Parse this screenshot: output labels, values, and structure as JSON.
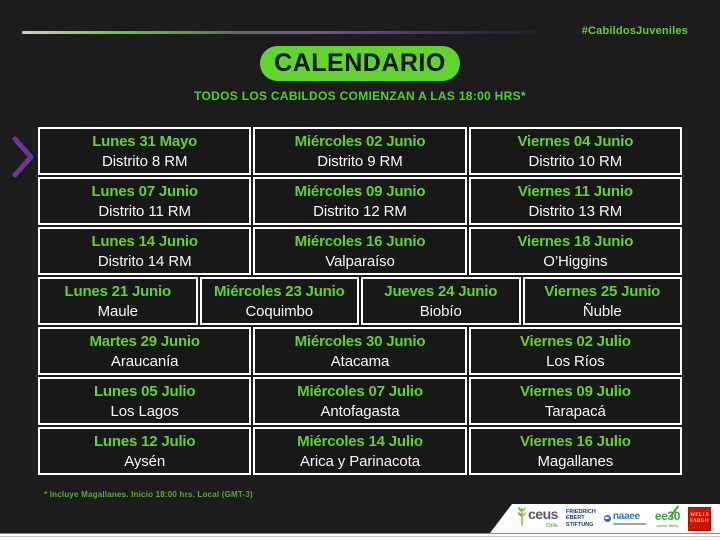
{
  "colors": {
    "background": "#1d1c1c",
    "accent_green": "#5fd32c",
    "accent_purple": "#7030a0",
    "footnote_green": "#54ad2c",
    "fes_blue": "#123d7a",
    "naaee_blue": "#2a79c0",
    "ee30_green": "#3ea23a",
    "wells_fargo_red": "#cd1309",
    "wells_fargo_yellow": "#ffd04a"
  },
  "header": {
    "hashtag": "#CabildosJuveniles",
    "title": "CALENDARIO",
    "subtitle": "TODOS LOS CABILDOS COMIENZAN A LAS 18:00 HRS*"
  },
  "calendar": {
    "rows": [
      {
        "cells": [
          {
            "date": "Lunes 31 Mayo",
            "location": "Distrito 8 RM"
          },
          {
            "date": "Miércoles 02 Junio",
            "location": "Distrito 9 RM"
          },
          {
            "date": "Viernes 04 Junio",
            "location": "Distrito 10 RM"
          }
        ]
      },
      {
        "cells": [
          {
            "date": "Lunes 07 Junio",
            "location": "Distrito 11 RM"
          },
          {
            "date": "Miércoles 09 Junio",
            "location": "Distrito 12 RM"
          },
          {
            "date": "Viernes 11 Junio",
            "location": "Distrito 13 RM"
          }
        ]
      },
      {
        "cells": [
          {
            "date": "Lunes 14 Junio",
            "location": "Distrito 14 RM"
          },
          {
            "date": "Miércoles 16 Junio",
            "location": "Valparaíso"
          },
          {
            "date": "Viernes 18 Junio",
            "location": "O’Higgins"
          }
        ]
      },
      {
        "cells": [
          {
            "date": "Lunes 21 Junio",
            "location": "Maule"
          },
          {
            "date": "Miércoles 23 Junio",
            "location": "Coquimbo"
          },
          {
            "date": "Jueves 24 Junio",
            "location": "Biobío"
          },
          {
            "date": "Viernes 25 Junio",
            "location": "Ñuble"
          }
        ]
      },
      {
        "cells": [
          {
            "date": "Martes 29 Junio",
            "location": "Araucanía"
          },
          {
            "date": "Miércoles 30 Junio",
            "location": "Atacama"
          },
          {
            "date": "Viernes 02 Julio",
            "location": "Los Ríos"
          }
        ]
      },
      {
        "cells": [
          {
            "date": "Lunes 05 Julio",
            "location": "Los Lagos"
          },
          {
            "date": "Miércoles 07 Julio",
            "location": "Antofagasta"
          },
          {
            "date": "Viernes 09 Julio",
            "location": "Tarapacá"
          }
        ]
      },
      {
        "cells": [
          {
            "date": "Lunes 12 Julio",
            "location": "Aysén"
          },
          {
            "date": "Miércoles 14 Julio",
            "location": "Arica y Parinacota"
          },
          {
            "date": "Viernes 16 Julio",
            "location": "Magallanes"
          }
        ]
      }
    ]
  },
  "footnote": "* Incluye Magallanes.  Inicio 18:00 hrs. Local (GMT-3)",
  "footer": {
    "logos": [
      {
        "id": "ceus-chile",
        "text": "ceus",
        "subtext": "Chile"
      },
      {
        "id": "friedrich-ebert-stiftung",
        "line1": "FRIEDRICH",
        "line2": "EBERT",
        "line3": "STIFTUNG"
      },
      {
        "id": "naaee",
        "text": "naaee"
      },
      {
        "id": "ee30",
        "text": "ee30",
        "subtext": "under thirty"
      },
      {
        "id": "wells-fargo",
        "line1": "WELLS",
        "line2": "FARGO"
      }
    ]
  }
}
